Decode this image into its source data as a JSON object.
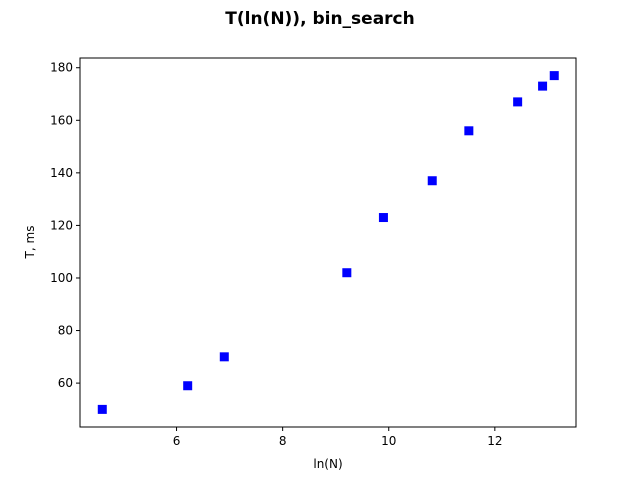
{
  "chart_data": {
    "type": "scatter",
    "title": "T(ln(N)), bin_search",
    "xlabel": "ln(N)",
    "ylabel": "T, ms",
    "xlim": [
      4.18,
      13.53
    ],
    "ylim": [
      43.3,
      183.7
    ],
    "xticks": [
      6,
      8,
      10,
      12
    ],
    "yticks": [
      60,
      80,
      100,
      120,
      140,
      160,
      180
    ],
    "grid": false,
    "marker": "square",
    "color": "#0000ff",
    "series": [
      {
        "x": [
          4.6,
          6.21,
          6.9,
          9.21,
          9.9,
          10.82,
          11.51,
          12.43,
          12.9,
          13.12
        ],
        "y": [
          50,
          59,
          70,
          102,
          123,
          137,
          156,
          167,
          173,
          177
        ]
      }
    ]
  }
}
